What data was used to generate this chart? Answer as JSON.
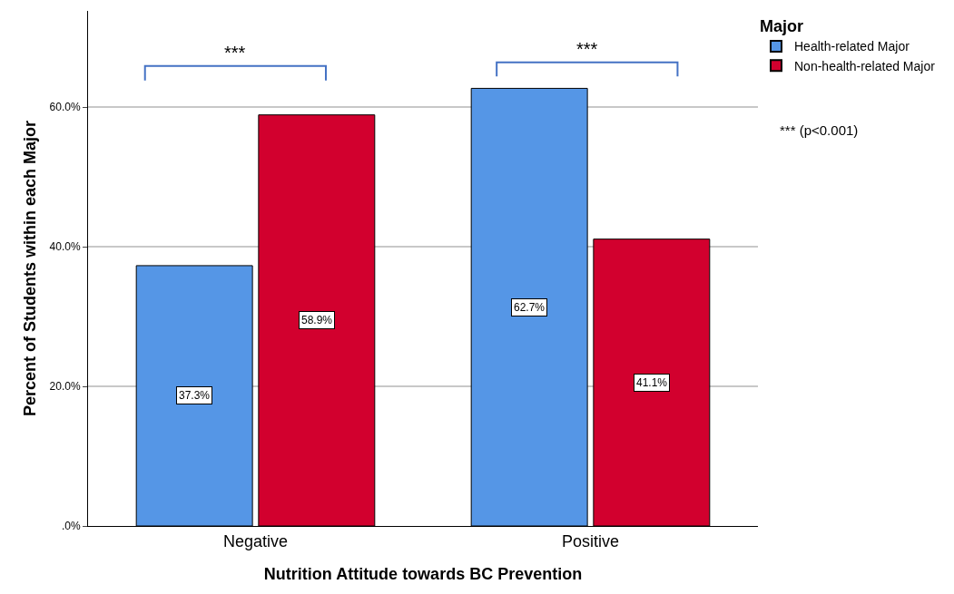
{
  "chart_data": {
    "type": "bar",
    "xlabel": "Nutrition Attitude towards BC Prevention",
    "ylabel": "Percent of Students within each Major",
    "legend_title": "Major",
    "categories": [
      "Negative",
      "Positive"
    ],
    "series": [
      {
        "name": "Health-related Major",
        "color": "#5596e6",
        "values": [
          37.3,
          62.7
        ],
        "value_labels": [
          "37.3%",
          "62.7%"
        ]
      },
      {
        "name": "Non-health-related Major",
        "color": "#d2002e",
        "values": [
          58.9,
          41.1
        ],
        "value_labels": [
          "58.9%",
          "41.1%"
        ]
      }
    ],
    "ylim": [
      0,
      73.8
    ],
    "yticks": [
      {
        "value": 0,
        "label": ".0%"
      },
      {
        "value": 20,
        "label": "20.0%"
      },
      {
        "value": 40,
        "label": "40.0%"
      },
      {
        "value": 60,
        "label": "60.0%"
      }
    ],
    "grid": "y",
    "legend": "top right",
    "annotations": [
      "***",
      "***",
      "*** (p<0.001)"
    ]
  }
}
